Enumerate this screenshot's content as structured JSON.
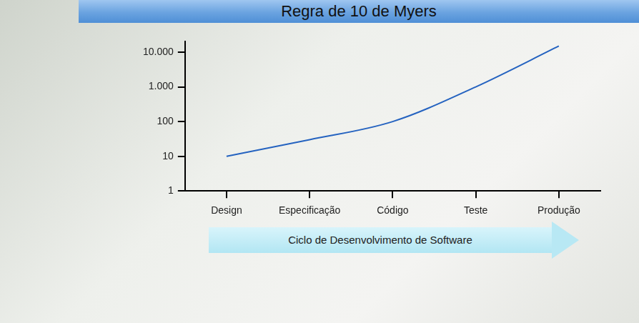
{
  "chart_data": {
    "type": "line",
    "title": "Regra de 10 de Myers",
    "x_label": "Ciclo de Desenvolvimento de Software",
    "categories": [
      "Design",
      "Especificação",
      "Código",
      "Teste",
      "Produção"
    ],
    "values": [
      10,
      30,
      100,
      1000,
      15000
    ],
    "color": "#2563c0",
    "ylim": [
      1,
      20000
    ],
    "yticks": [
      1,
      10,
      100,
      {
        "value": 1000,
        "label": "1.000"
      },
      {
        "value": 10000,
        "label": "10.000"
      }
    ],
    "log": "y",
    "grid": false
  }
}
